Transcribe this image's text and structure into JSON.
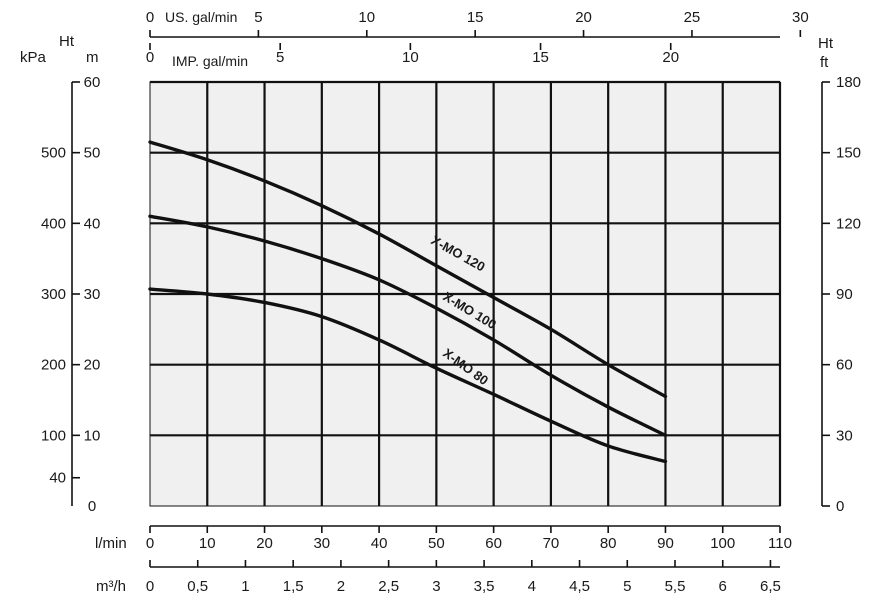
{
  "chart_data": {
    "type": "line",
    "x_unit": "l/min",
    "xlim": [
      0,
      110
    ],
    "xticks": [
      0,
      10,
      20,
      30,
      40,
      50,
      60,
      70,
      80,
      90,
      100,
      110
    ],
    "ylim": [
      0,
      60
    ],
    "y_m_ticks": [
      0,
      10,
      20,
      30,
      40,
      50,
      60
    ],
    "grid": true,
    "series": [
      {
        "name": "X-MO 120",
        "x": [
          0,
          10,
          20,
          30,
          40,
          50,
          60,
          70,
          80,
          90
        ],
        "y": [
          51.5,
          49,
          46,
          42.5,
          38.5,
          34,
          29.5,
          25,
          20,
          15.5
        ]
      },
      {
        "name": "X-MO 100",
        "x": [
          0,
          10,
          20,
          30,
          40,
          50,
          60,
          70,
          80,
          90
        ],
        "y": [
          41,
          39.5,
          37.5,
          35,
          32,
          28,
          23.5,
          18.5,
          14,
          10
        ]
      },
      {
        "name": "X-MO 80",
        "x": [
          0,
          10,
          20,
          30,
          40,
          50,
          60,
          70,
          80,
          90
        ],
        "y": [
          30.7,
          30,
          28.8,
          26.8,
          23.5,
          19.5,
          15.8,
          12,
          8.5,
          6.3
        ]
      }
    ],
    "curve_labels": [
      "X-MO 120",
      "X-MO 100",
      "X-MO 80"
    ]
  },
  "axes": {
    "left_header_ht": "Ht",
    "left_header_kpa": "kPa",
    "left_header_m": "m",
    "right_header_ht": "Ht",
    "right_header_ft": "ft",
    "kpa_ticks": [
      "40",
      "100",
      "200",
      "300",
      "400",
      "500"
    ],
    "m_ticks": [
      "0",
      "10",
      "20",
      "30",
      "40",
      "50",
      "60"
    ],
    "ft_ticks": [
      "0",
      "30",
      "60",
      "90",
      "120",
      "150",
      "180"
    ],
    "lmin_label": "l/min",
    "lmin_ticks": [
      "0",
      "10",
      "20",
      "30",
      "40",
      "50",
      "60",
      "70",
      "80",
      "90",
      "100",
      "110"
    ],
    "m3h_label": "m³/h",
    "m3h_ticks": [
      "0",
      "0,5",
      "1",
      "1,5",
      "2",
      "2,5",
      "3",
      "3,5",
      "4",
      "4,5",
      "5",
      "5,5",
      "6",
      "6,5"
    ],
    "usgal_label": "US. gal/min",
    "usgal_ticks": [
      "0",
      "5",
      "10",
      "15",
      "20",
      "25",
      "30"
    ],
    "impgal_label": "IMP. gal/min",
    "impgal_ticks": [
      "0",
      "5",
      "10",
      "15",
      "20"
    ]
  }
}
